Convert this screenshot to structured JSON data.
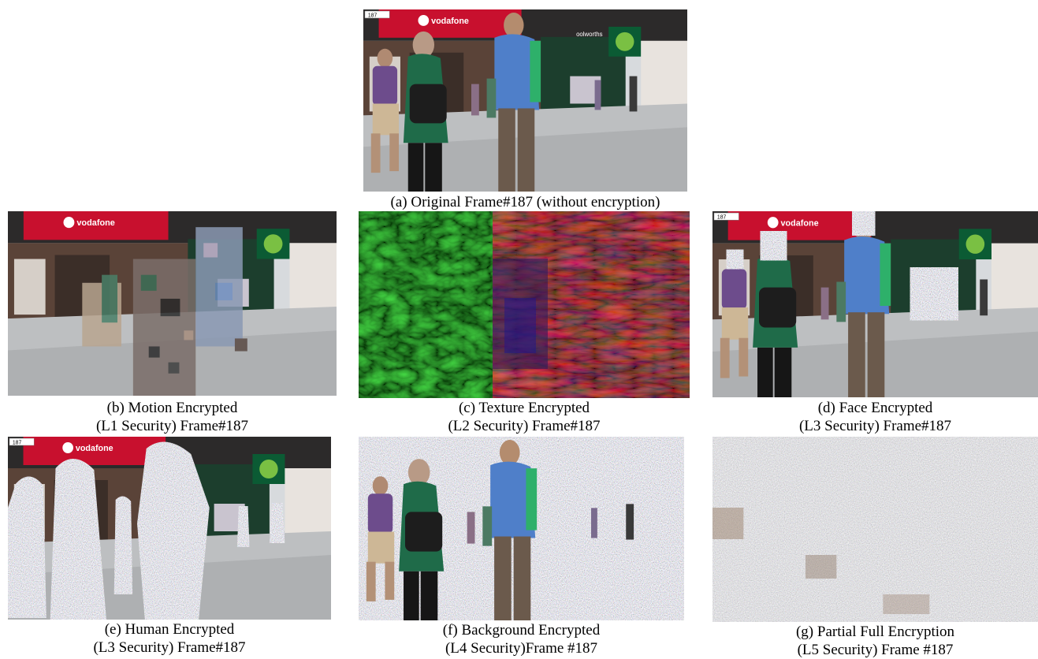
{
  "figure": {
    "panels": [
      {
        "id": "a",
        "lines": [
          "(a) Original Frame#187 (without encryption)"
        ]
      },
      {
        "id": "b",
        "lines": [
          "(b) Motion Encrypted",
          "(L1 Security) Frame#187"
        ]
      },
      {
        "id": "c",
        "lines": [
          "(c) Texture Encrypted",
          "(L2 Security) Frame#187"
        ]
      },
      {
        "id": "d",
        "lines": [
          "(d) Face Encrypted",
          "(L3 Security) Frame#187"
        ]
      },
      {
        "id": "e",
        "lines": [
          "(e) Human Encrypted",
          "(L3 Security) Frame#187"
        ]
      },
      {
        "id": "f",
        "lines": [
          "(f) Background Encrypted",
          "(L4 Security)Frame #187"
        ]
      },
      {
        "id": "g",
        "lines": [
          "(g) Partial Full Encryption",
          "(L5 Security) Frame #187"
        ]
      }
    ],
    "scene_text": {
      "frame_counter": "187",
      "brand_sign": "vodafone",
      "store_sign": "oolworths"
    }
  }
}
